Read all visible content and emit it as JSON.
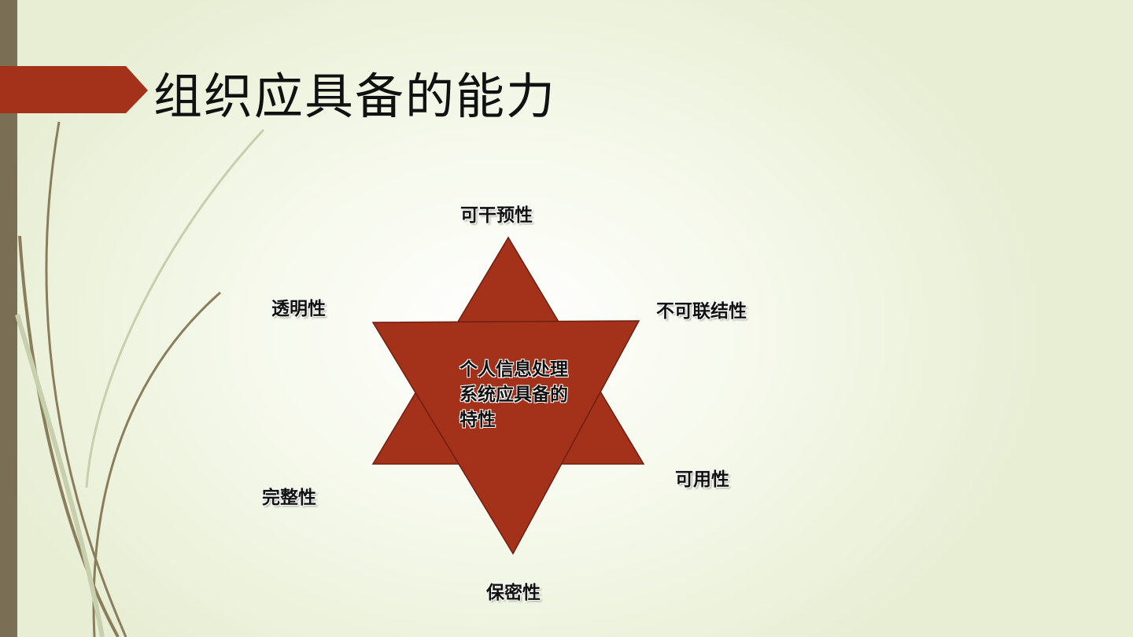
{
  "slide": {
    "title": "组织应具备的能力",
    "accent_color": "#a4311a",
    "band_color": "#7a6f55"
  },
  "diagram": {
    "center_label": "个人信息处理系统应具备的特性",
    "properties": {
      "top": "可干预性",
      "upper_left": "透明性",
      "upper_right": "不可联结性",
      "lower_left": "完整性",
      "lower_right": "可用性",
      "bottom": "保密性"
    }
  }
}
